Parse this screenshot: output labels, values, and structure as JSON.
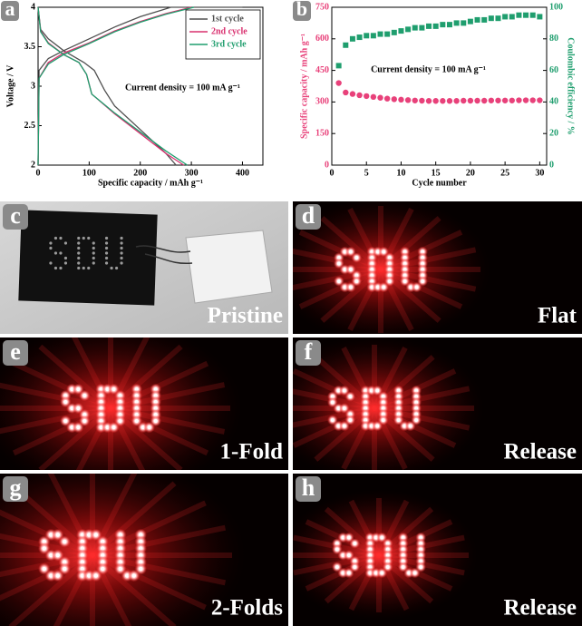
{
  "chart_data": [
    {
      "type": "line",
      "letter": "a",
      "xlabel": "Specific capacity / mAh g⁻¹",
      "ylabel": "Voltage / V",
      "annotation": "Current density = 100 mA g⁻¹",
      "xlim": [
        0,
        440
      ],
      "ylim": [
        2,
        4
      ],
      "xticks": [
        0,
        100,
        200,
        300,
        400
      ],
      "yticks": [
        2,
        2.5,
        3,
        3.5,
        4
      ],
      "legend": "upper right",
      "series": [
        {
          "name": "1st cycle",
          "color": "#505050",
          "x": [
            0,
            2,
            20,
            50,
            100,
            150,
            200,
            240,
            260,
            300,
            400,
            null,
            0,
            5,
            20,
            50,
            90,
            110,
            130,
            150,
            200,
            250,
            270
          ],
          "values": [
            2.0,
            3.2,
            3.35,
            3.45,
            3.6,
            3.75,
            3.88,
            3.96,
            4.0,
            4.0,
            4.0,
            null,
            4.0,
            3.72,
            3.6,
            3.45,
            3.3,
            3.2,
            2.95,
            2.75,
            2.45,
            2.15,
            2.0
          ]
        },
        {
          "name": "2nd cycle",
          "color": "#d9306f",
          "x": [
            0,
            2,
            20,
            50,
            100,
            150,
            200,
            250,
            300,
            null,
            0,
            5,
            20,
            50,
            80,
            95,
            105,
            150,
            200,
            250,
            285
          ],
          "values": [
            2.0,
            3.1,
            3.3,
            3.42,
            3.55,
            3.7,
            3.82,
            3.92,
            4.0,
            null,
            4.0,
            3.7,
            3.55,
            3.4,
            3.3,
            3.15,
            2.9,
            2.65,
            2.4,
            2.15,
            2.0
          ]
        },
        {
          "name": "3rd cycle",
          "color": "#1f9e6e",
          "x": [
            0,
            2,
            20,
            50,
            100,
            150,
            200,
            250,
            305,
            null,
            0,
            5,
            20,
            50,
            80,
            95,
            105,
            150,
            200,
            250,
            292
          ],
          "values": [
            2.0,
            3.1,
            3.28,
            3.4,
            3.54,
            3.69,
            3.81,
            3.91,
            4.0,
            null,
            4.0,
            3.69,
            3.54,
            3.4,
            3.3,
            3.15,
            2.9,
            2.66,
            2.42,
            2.18,
            2.0
          ]
        }
      ]
    },
    {
      "type": "scatter",
      "letter": "b",
      "xlabel": "Cycle number",
      "ylabel": "Specific capacity / mAh g⁻¹",
      "y2label": "Coulombic efficiency / %",
      "annotation": "Current density = 100 mA g⁻¹",
      "x": [
        1,
        2,
        3,
        4,
        5,
        6,
        7,
        8,
        9,
        10,
        11,
        12,
        13,
        14,
        15,
        16,
        17,
        18,
        19,
        20,
        21,
        22,
        23,
        24,
        25,
        26,
        27,
        28,
        29,
        30
      ],
      "xlim": [
        0,
        31
      ],
      "xticks": [
        0,
        5,
        10,
        15,
        20,
        25,
        30
      ],
      "ylim": [
        0,
        750
      ],
      "yticks": [
        0,
        150,
        300,
        450,
        600,
        750
      ],
      "y2lim": [
        0,
        100
      ],
      "y2ticks": [
        0,
        20,
        40,
        60,
        80,
        100
      ],
      "series": [
        {
          "color": "#e8417a",
          "marker": "circle",
          "axis": "y",
          "values": [
            390,
            345,
            338,
            332,
            328,
            324,
            320,
            316,
            313,
            311,
            309,
            307,
            306,
            305,
            305,
            305,
            305,
            305,
            306,
            306,
            306,
            306,
            307,
            307,
            307,
            307,
            308,
            308,
            308,
            308
          ]
        },
        {
          "color": "#1f9e6e",
          "marker": "square",
          "axis": "y2",
          "values": [
            63,
            76,
            80,
            81,
            82,
            82,
            83,
            83,
            84,
            85,
            86,
            87,
            87,
            88,
            88,
            89,
            89,
            90,
            90,
            91,
            92,
            92,
            93,
            93,
            94,
            94,
            95,
            95,
            95,
            94
          ]
        }
      ]
    }
  ],
  "photos": [
    {
      "letter": "c",
      "caption": "Pristine"
    },
    {
      "letter": "d",
      "caption": "Flat"
    },
    {
      "letter": "e",
      "caption": "1-Fold"
    },
    {
      "letter": "f",
      "caption": "Release"
    },
    {
      "letter": "g",
      "caption": "2-Folds"
    },
    {
      "letter": "h",
      "caption": "Release"
    }
  ]
}
